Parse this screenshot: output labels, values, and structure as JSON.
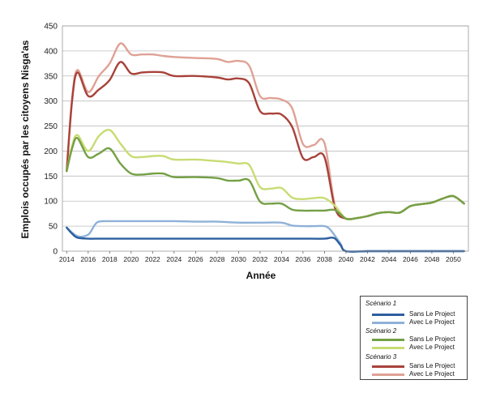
{
  "chart_data": {
    "type": "line",
    "title": "",
    "xlabel": "Année",
    "ylabel": "Emplois occupés par les citoyens Nisga'as",
    "xlim": [
      2013.6,
      2051.4
    ],
    "ylim": [
      0,
      450
    ],
    "yticks": [
      0,
      50,
      100,
      150,
      200,
      250,
      300,
      350,
      400,
      450
    ],
    "xticks": [
      2014,
      2016,
      2018,
      2020,
      2022,
      2024,
      2026,
      2028,
      2030,
      2032,
      2034,
      2036,
      2038,
      2040,
      2042,
      2044,
      2046,
      2048,
      2050
    ],
    "grid": "horizontal",
    "legend_position": "bottom-right",
    "scenarios": [
      {
        "label": "Scénario 1",
        "series": [
          0,
          1
        ]
      },
      {
        "label": "Scénario 2",
        "series": [
          2,
          3
        ]
      },
      {
        "label": "Scénario 3",
        "series": [
          4,
          5
        ]
      }
    ],
    "series": [
      {
        "name": "Sans Le Project",
        "color": "#2e5f9e",
        "x": [
          2014,
          2014.5,
          2015,
          2016,
          2017,
          2018,
          2020,
          2022,
          2024,
          2026,
          2028,
          2030,
          2032,
          2034,
          2036,
          2038,
          2038.6,
          2039,
          2039.5,
          2040,
          2042,
          2044,
          2046,
          2048,
          2050,
          2051
        ],
        "values": [
          47,
          35,
          27,
          25,
          25,
          25,
          25,
          25,
          25,
          25,
          25,
          25,
          25,
          25,
          25,
          25,
          27,
          25,
          12,
          0,
          0,
          0,
          0,
          0,
          0,
          0
        ]
      },
      {
        "name": "Avec Le Project",
        "color": "#8fb1d8",
        "x": [
          2014,
          2015,
          2016,
          2016.6,
          2017,
          2018,
          2020,
          2022,
          2024,
          2026,
          2028,
          2030,
          2032,
          2034,
          2035,
          2036,
          2037,
          2038,
          2038.5,
          2039,
          2039.5,
          2040,
          2042,
          2044,
          2046,
          2048,
          2050,
          2051
        ],
        "values": [
          47,
          30,
          33,
          52,
          59,
          60,
          60,
          60,
          60,
          59,
          59,
          57,
          57,
          57,
          51,
          50,
          50,
          50,
          44,
          30,
          15,
          0,
          0,
          0,
          0,
          0,
          0,
          0
        ]
      },
      {
        "name": "Sans Le Project",
        "color": "#74a045",
        "x": [
          2014,
          2014.5,
          2015,
          2016,
          2017,
          2018,
          2019,
          2020,
          2021,
          2022,
          2023,
          2024,
          2026,
          2028,
          2029,
          2030,
          2031,
          2032,
          2033,
          2034,
          2035,
          2036,
          2037,
          2038,
          2039,
          2040,
          2041,
          2042,
          2043,
          2044,
          2045,
          2046,
          2047,
          2048,
          2049,
          2050,
          2051
        ],
        "values": [
          160,
          205,
          226,
          188,
          195,
          205,
          175,
          155,
          153,
          155,
          155,
          148,
          148,
          146,
          141,
          141,
          141,
          99,
          95,
          95,
          83,
          81,
          81,
          81,
          82,
          65,
          66,
          70,
          76,
          78,
          77,
          90,
          94,
          97,
          105,
          110,
          95
        ]
      },
      {
        "name": "Avec Le Project",
        "color": "#c7dc73",
        "x": [
          2014,
          2014.5,
          2015,
          2016,
          2017,
          2018,
          2019,
          2020,
          2021,
          2022,
          2023,
          2024,
          2026,
          2028,
          2029,
          2030,
          2031,
          2032,
          2033,
          2034,
          2035,
          2036,
          2037,
          2038,
          2039,
          2040,
          2041,
          2042,
          2043,
          2044,
          2045,
          2046,
          2047,
          2048,
          2049,
          2050,
          2051
        ],
        "values": [
          160,
          210,
          232,
          200,
          230,
          242,
          215,
          190,
          188,
          190,
          190,
          183,
          183,
          180,
          178,
          175,
          172,
          128,
          125,
          126,
          107,
          104,
          106,
          106,
          90,
          65,
          66,
          70,
          76,
          78,
          77,
          90,
          94,
          97,
          105,
          110,
          95
        ]
      },
      {
        "name": "Sans Le Project",
        "color": "#a8423a",
        "x": [
          2014,
          2014.5,
          2015,
          2016,
          2017,
          2018,
          2019,
          2020,
          2021,
          2022,
          2023,
          2024,
          2026,
          2028,
          2029,
          2030,
          2031,
          2032,
          2033,
          2034,
          2035,
          2036,
          2037,
          2038,
          2039,
          2040,
          2041,
          2042,
          2043,
          2044,
          2045,
          2046,
          2047,
          2048,
          2049,
          2050,
          2051
        ],
        "values": [
          160,
          300,
          357,
          310,
          323,
          342,
          378,
          355,
          357,
          358,
          357,
          350,
          350,
          347,
          343,
          345,
          335,
          280,
          275,
          273,
          248,
          186,
          188,
          188,
          85,
          65,
          66,
          70,
          76,
          78,
          77,
          90,
          94,
          97,
          105,
          110,
          95
        ]
      },
      {
        "name": "Avec Le Project",
        "color": "#dfa195",
        "x": [
          2014,
          2014.5,
          2015,
          2016,
          2017,
          2018,
          2019,
          2020,
          2021,
          2022,
          2023,
          2024,
          2026,
          2028,
          2029,
          2030,
          2031,
          2032,
          2033,
          2034,
          2035,
          2036,
          2037,
          2038,
          2039,
          2040,
          2041,
          2042,
          2043,
          2044,
          2045,
          2046,
          2047,
          2048,
          2049,
          2050,
          2051
        ],
        "values": [
          160,
          305,
          362,
          318,
          350,
          375,
          415,
          393,
          393,
          393,
          390,
          388,
          386,
          384,
          378,
          380,
          370,
          310,
          306,
          303,
          285,
          214,
          212,
          216,
          88,
          65,
          66,
          70,
          76,
          78,
          77,
          90,
          94,
          97,
          105,
          110,
          95
        ]
      }
    ]
  }
}
